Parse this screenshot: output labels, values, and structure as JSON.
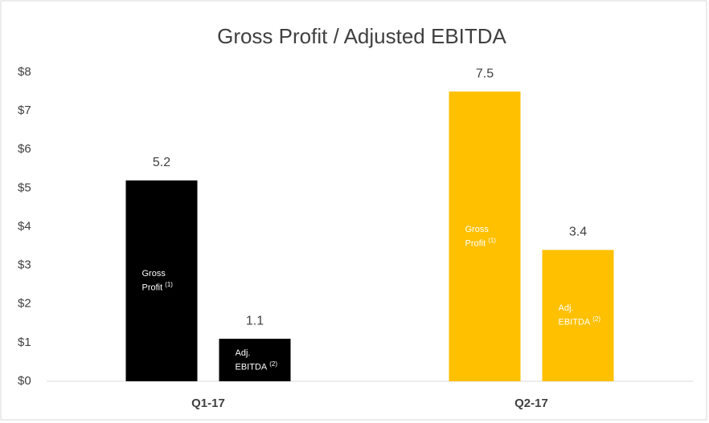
{
  "chart_data": {
    "type": "bar",
    "title": "Gross Profit / Adjusted EBITDA",
    "categories": [
      "Q1-17",
      "Q2-17"
    ],
    "category_colors": [
      "#000000",
      "#ffc000"
    ],
    "series": [
      {
        "name": "Gross Profit",
        "note": "(1)",
        "values": [
          5.2,
          7.5
        ]
      },
      {
        "name": "Adj. EBITDA",
        "note": "(2)",
        "values": [
          1.1,
          3.4
        ]
      }
    ],
    "ylim": [
      0,
      8
    ],
    "yticks": [
      {
        "value": 0,
        "label": "$0"
      },
      {
        "value": 1,
        "label": "$1"
      },
      {
        "value": 2,
        "label": "$2"
      },
      {
        "value": 3,
        "label": "$3"
      },
      {
        "value": 4,
        "label": "$4"
      },
      {
        "value": 5,
        "label": "$5"
      },
      {
        "value": 6,
        "label": "$6"
      },
      {
        "value": 7,
        "label": "$7"
      },
      {
        "value": 8,
        "label": "$8"
      }
    ],
    "grid": false
  }
}
